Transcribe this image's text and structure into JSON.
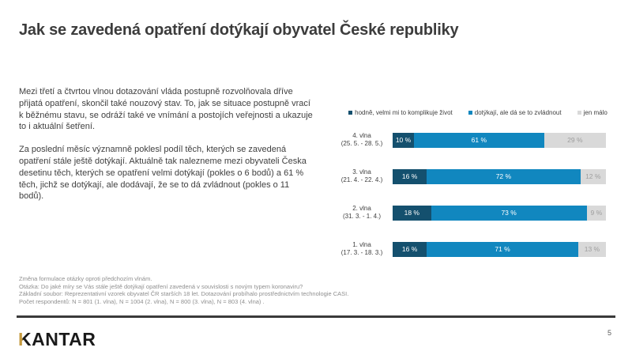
{
  "slide": {
    "title": "Jak se zavedená opatření dotýkají obyvatel České republiky",
    "logo_k": "K",
    "logo_rest": "ANTAR",
    "page_number": "5"
  },
  "body": {
    "paragraph1": "Mezi třetí a čtvrtou vlnou dotazování vláda postupně rozvolňovala dříve přijatá opatření, skončil také nouzový stav. To, jak se situace postupně vrací k běžnému stavu, se odráží také ve vnímání a postojích veřejnosti a ukazuje to i aktuální šetření.",
    "paragraph2": "Za poslední měsíc významně poklesl podíl těch, kterých se zavedená opatření stále ještě dotýkají. Aktuálně tak nalezneme mezi obyvateli Česka desetinu těch, kterých se opatření velmi dotýkají (pokles o 6 bodů) a 61 % těch, jichž se dotýkají, ale dodávají, že se to dá zvládnout (pokles o 11 bodů).",
    "paragraph2_highlight": "61 %"
  },
  "chart_data": {
    "type": "bar",
    "orientation": "horizontal-stacked",
    "xlim": [
      0,
      100
    ],
    "grid": false,
    "legend_position": "top",
    "legend": [
      {
        "label": "hodně, velmi mi to komplikuje život",
        "color": "#14506e"
      },
      {
        "label": "dotýkají, ale dá se to zvládnout",
        "color": "#1187bf"
      },
      {
        "label": "jen málo",
        "color": "#d9d9d9"
      }
    ],
    "rows": [
      {
        "wave": "4. vlna",
        "dates": "(25. 5. - 28. 5.)",
        "values": [
          10,
          61,
          29
        ],
        "labels": [
          "10 %",
          "61 %",
          "29 %"
        ]
      },
      {
        "wave": "3. vlna",
        "dates": "(21. 4. - 22. 4.)",
        "values": [
          16,
          72,
          12
        ],
        "labels": [
          "16 %",
          "72 %",
          "12 %"
        ]
      },
      {
        "wave": "2. vlna",
        "dates": "(31. 3. - 1. 4.)",
        "values": [
          18,
          73,
          9
        ],
        "labels": [
          "18 %",
          "73 %",
          "9 %"
        ]
      },
      {
        "wave": "1. vlna",
        "dates": "(17. 3. - 18. 3.)",
        "values": [
          16,
          71,
          13
        ],
        "labels": [
          "16 %",
          "71 %",
          "13 %"
        ]
      }
    ]
  },
  "footnotes": {
    "lines": [
      "Změna formulace otázky oproti předchozím vlnám.",
      "Otázka: Do jaké míry se Vás stále ještě dotýkají opatření zavedená v souvislosti s novým typem koronaviru?",
      "Základní soubor: Reprezentativní vzorek obyvatel ČR starších 18 let. Dotazování probíhalo prostřednictvím technologie CASI.",
      "Počet respondentů: N = 801 (1. vlna), N = 1004 (2. vlna), N = 800 (3. vlna), N = 803 (4. vlna) ."
    ]
  },
  "colors": {
    "accent_dark": "#14506e",
    "accent_blue": "#1187bf",
    "neutral_gray": "#d9d9d9",
    "divider": "#3a3a3a",
    "logo_gold": "#c59a3f",
    "title_text": "#3c3c3c",
    "body_text": "#404040",
    "footnote_text": "#8f8f8f"
  }
}
